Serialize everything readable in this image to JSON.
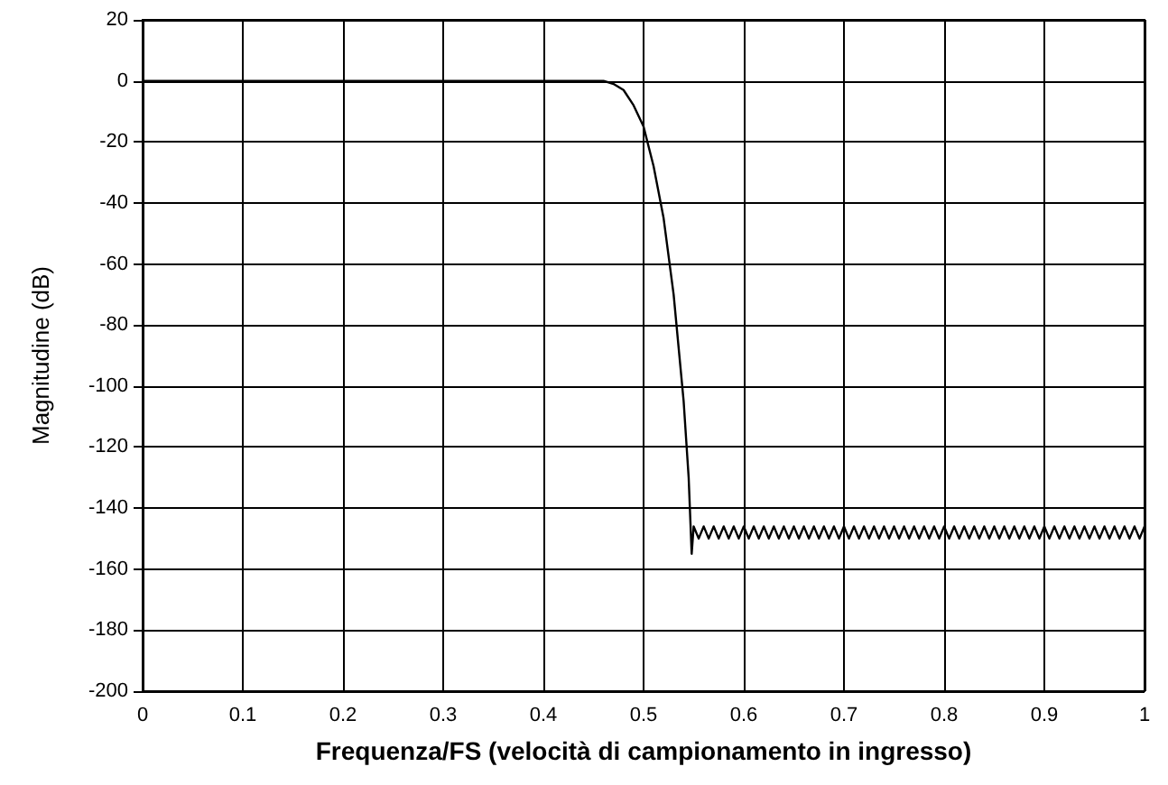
{
  "chart_data": {
    "type": "line",
    "xlabel": "Frequenza/FS (velocità di campionamento in ingresso)",
    "ylabel": "Magnitudine (dB)",
    "xlim": [
      0,
      1
    ],
    "xticks": [
      0,
      0.1,
      0.2,
      0.3,
      0.4,
      0.5,
      0.6,
      0.7,
      0.8,
      0.9,
      1
    ],
    "ylim": [
      -200,
      20
    ],
    "yticks": [
      -200,
      -180,
      -160,
      -140,
      -120,
      -100,
      -80,
      -60,
      -40,
      -20,
      0,
      20
    ],
    "grid": true,
    "marker": "none",
    "line_style": "solid",
    "series": [
      {
        "color": "#000000",
        "x": [
          0,
          0.1,
          0.2,
          0.3,
          0.4,
          0.46,
          0.47,
          0.48,
          0.49,
          0.5,
          0.51,
          0.52,
          0.53,
          0.54,
          0.545,
          0.548,
          0.55,
          0.555,
          0.56,
          0.565,
          0.57,
          0.575,
          0.58,
          0.585,
          0.59,
          0.595,
          0.6,
          0.605,
          0.61,
          0.615,
          0.62,
          0.625,
          0.63,
          0.635,
          0.64,
          0.645,
          0.65,
          0.655,
          0.66,
          0.665,
          0.67,
          0.675,
          0.68,
          0.685,
          0.69,
          0.695,
          0.7,
          0.705,
          0.71,
          0.715,
          0.72,
          0.725,
          0.73,
          0.735,
          0.74,
          0.745,
          0.75,
          0.755,
          0.76,
          0.765,
          0.77,
          0.775,
          0.78,
          0.785,
          0.79,
          0.795,
          0.8,
          0.805,
          0.81,
          0.815,
          0.82,
          0.825,
          0.83,
          0.835,
          0.84,
          0.845,
          0.85,
          0.855,
          0.86,
          0.865,
          0.87,
          0.875,
          0.88,
          0.885,
          0.89,
          0.895,
          0.9,
          0.905,
          0.91,
          0.915,
          0.92,
          0.925,
          0.93,
          0.935,
          0.94,
          0.945,
          0.95,
          0.955,
          0.96,
          0.965,
          0.97,
          0.975,
          0.98,
          0.985,
          0.99,
          0.995,
          1
        ],
        "values": [
          0,
          0,
          0,
          0,
          0,
          0,
          -1,
          -3,
          -8,
          -15,
          -28,
          -45,
          -70,
          -105,
          -130,
          -155,
          -146,
          -150,
          -146,
          -150,
          -146,
          -150,
          -146,
          -150,
          -146,
          -150,
          -146,
          -150,
          -146,
          -150,
          -146,
          -150,
          -146,
          -150,
          -146,
          -150,
          -146,
          -150,
          -146,
          -150,
          -146,
          -150,
          -146,
          -150,
          -146,
          -150,
          -146,
          -150,
          -146,
          -150,
          -146,
          -150,
          -146,
          -150,
          -146,
          -150,
          -146,
          -150,
          -146,
          -150,
          -146,
          -150,
          -146,
          -150,
          -146,
          -150,
          -146,
          -150,
          -146,
          -150,
          -146,
          -150,
          -146,
          -150,
          -146,
          -150,
          -146,
          -150,
          -146,
          -150,
          -146,
          -150,
          -146,
          -150,
          -146,
          -150,
          -146,
          -150,
          -146,
          -150,
          -146,
          -150,
          -146,
          -150,
          -146,
          -150,
          -146,
          -150,
          -146,
          -150,
          -146,
          -150,
          -146,
          -150,
          -146,
          -150,
          -146
        ]
      }
    ]
  }
}
